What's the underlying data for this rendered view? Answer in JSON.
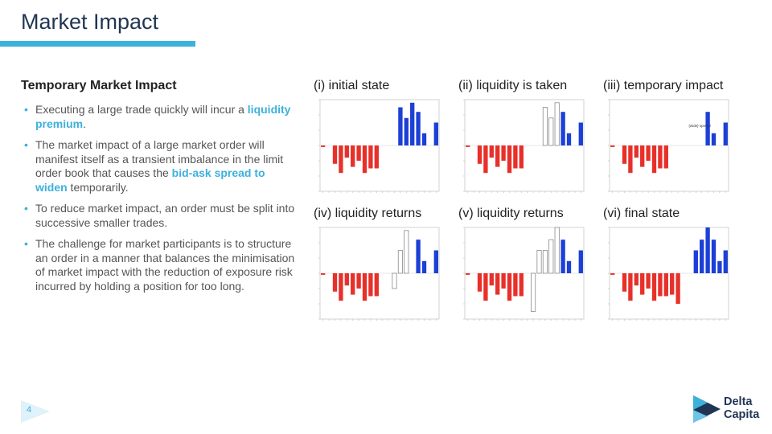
{
  "slide": {
    "title": "Market Impact",
    "subtitle": "Temporary Market Impact",
    "page_number": "4"
  },
  "bullets": [
    {
      "before": "Executing a large trade quickly will incur a ",
      "highlight": "liquidity premium",
      "after": "."
    },
    {
      "before": "The market impact of a large market order will manifest itself as a transient imbalance in the limit order book that causes the ",
      "highlight": "bid-ask spread to widen",
      "after": " temporarily."
    },
    {
      "before": "To reduce market impact, an order must be split into successive smaller trades.",
      "highlight": "",
      "after": ""
    },
    {
      "before": "The challenge for market participants is to structure an order in a manner that balances the minimisation of market impact with the reduction of exposure risk incurred by holding a position for too long.",
      "highlight": "",
      "after": ""
    }
  ],
  "logo": {
    "line1": "Delta",
    "line2": "Capita"
  },
  "colors": {
    "bid": "#e8302a",
    "ask": "#1c3fd6",
    "accent": "#3cb1dc",
    "navy": "#1f3553"
  },
  "chart_data": [
    {
      "type": "bar",
      "title": "(i) initial state",
      "x": [
        1,
        2,
        3,
        4,
        5,
        6,
        7,
        8,
        9,
        10,
        11,
        12,
        13,
        14,
        15,
        16,
        17,
        18,
        19,
        20
      ],
      "bids": [
        -1,
        0,
        -12,
        -18,
        -8,
        -14,
        -10,
        -18,
        -15,
        -15,
        0,
        0,
        0,
        0,
        0,
        0,
        0,
        0,
        0,
        0
      ],
      "asks": [
        0,
        0,
        0,
        0,
        0,
        0,
        0,
        0,
        0,
        0,
        0,
        0,
        0,
        25,
        18,
        28,
        22,
        8,
        0,
        15
      ],
      "removed": [
        0,
        0,
        0,
        0,
        0,
        0,
        0,
        0,
        0,
        0,
        0,
        0,
        0,
        0,
        0,
        0,
        0,
        0,
        0,
        0
      ],
      "ylim": [
        -30,
        30
      ]
    },
    {
      "type": "bar",
      "title": "(ii) liquidity is taken",
      "x": [
        1,
        2,
        3,
        4,
        5,
        6,
        7,
        8,
        9,
        10,
        11,
        12,
        13,
        14,
        15,
        16,
        17,
        18,
        19,
        20
      ],
      "bids": [
        -1,
        0,
        -12,
        -18,
        -8,
        -14,
        -10,
        -18,
        -15,
        -15,
        0,
        0,
        0,
        0,
        0,
        0,
        0,
        0,
        0,
        0
      ],
      "asks": [
        0,
        0,
        0,
        0,
        0,
        0,
        0,
        0,
        0,
        0,
        0,
        0,
        0,
        0,
        0,
        0,
        22,
        8,
        0,
        15
      ],
      "removed": [
        0,
        0,
        0,
        0,
        0,
        0,
        0,
        0,
        0,
        0,
        0,
        0,
        0,
        25,
        18,
        28,
        0,
        0,
        0,
        0
      ],
      "ylim": [
        -30,
        30
      ]
    },
    {
      "type": "bar",
      "title": "(iii) temporary impact",
      "x": [
        1,
        2,
        3,
        4,
        5,
        6,
        7,
        8,
        9,
        10,
        11,
        12,
        13,
        14,
        15,
        16,
        17,
        18,
        19,
        20
      ],
      "bids": [
        -1,
        0,
        -12,
        -18,
        -8,
        -14,
        -10,
        -18,
        -15,
        -15,
        0,
        0,
        0,
        0,
        0,
        0,
        0,
        0,
        0,
        0
      ],
      "asks": [
        0,
        0,
        0,
        0,
        0,
        0,
        0,
        0,
        0,
        0,
        0,
        0,
        0,
        0,
        0,
        0,
        22,
        8,
        0,
        15
      ],
      "removed": [
        0,
        0,
        0,
        0,
        0,
        0,
        0,
        0,
        0,
        0,
        0,
        0,
        0,
        0,
        0,
        0,
        0,
        0,
        0,
        0
      ],
      "annotation": "{wide} spread",
      "ylim": [
        -30,
        30
      ]
    },
    {
      "type": "bar",
      "title": "(iv) liquidity returns",
      "x": [
        1,
        2,
        3,
        4,
        5,
        6,
        7,
        8,
        9,
        10,
        11,
        12,
        13,
        14,
        15,
        16,
        17,
        18,
        19,
        20
      ],
      "bids": [
        -1,
        0,
        -12,
        -18,
        -8,
        -14,
        -10,
        -18,
        -15,
        -15,
        0,
        0,
        0,
        0,
        0,
        0,
        0,
        0,
        0,
        0
      ],
      "asks": [
        0,
        0,
        0,
        0,
        0,
        0,
        0,
        0,
        0,
        0,
        0,
        0,
        0,
        0,
        0,
        0,
        22,
        8,
        0,
        15
      ],
      "removed": [
        0,
        0,
        0,
        0,
        0,
        0,
        0,
        0,
        0,
        0,
        0,
        0,
        -10,
        15,
        28,
        0,
        0,
        0,
        0,
        0
      ],
      "ylim": [
        -30,
        30
      ]
    },
    {
      "type": "bar",
      "title": "(v) liquidity returns",
      "x": [
        1,
        2,
        3,
        4,
        5,
        6,
        7,
        8,
        9,
        10,
        11,
        12,
        13,
        14,
        15,
        16,
        17,
        18,
        19,
        20
      ],
      "bids": [
        -1,
        0,
        -12,
        -18,
        -8,
        -14,
        -10,
        -18,
        -15,
        -15,
        0,
        0,
        0,
        0,
        0,
        0,
        0,
        0,
        0,
        0
      ],
      "asks": [
        0,
        0,
        0,
        0,
        0,
        0,
        0,
        0,
        0,
        0,
        0,
        0,
        0,
        0,
        0,
        0,
        22,
        8,
        0,
        15
      ],
      "removed": [
        0,
        0,
        0,
        0,
        0,
        0,
        0,
        0,
        0,
        0,
        0,
        -25,
        15,
        15,
        22,
        30,
        0,
        0,
        0,
        0
      ],
      "ylim": [
        -30,
        30
      ]
    },
    {
      "type": "bar",
      "title": "(vi) final state",
      "x": [
        1,
        2,
        3,
        4,
        5,
        6,
        7,
        8,
        9,
        10,
        11,
        12,
        13,
        14,
        15,
        16,
        17,
        18,
        19,
        20
      ],
      "bids": [
        -1,
        0,
        -12,
        -18,
        -8,
        -14,
        -10,
        -18,
        -15,
        -15,
        -14,
        -20,
        0,
        0,
        0,
        0,
        0,
        0,
        0,
        0
      ],
      "asks": [
        0,
        0,
        0,
        0,
        0,
        0,
        0,
        0,
        0,
        0,
        0,
        0,
        0,
        0,
        15,
        22,
        30,
        22,
        8,
        15
      ],
      "removed": [
        0,
        0,
        0,
        0,
        0,
        0,
        0,
        0,
        0,
        0,
        0,
        0,
        0,
        0,
        0,
        0,
        0,
        0,
        0,
        0
      ],
      "ylim": [
        -30,
        30
      ]
    }
  ]
}
